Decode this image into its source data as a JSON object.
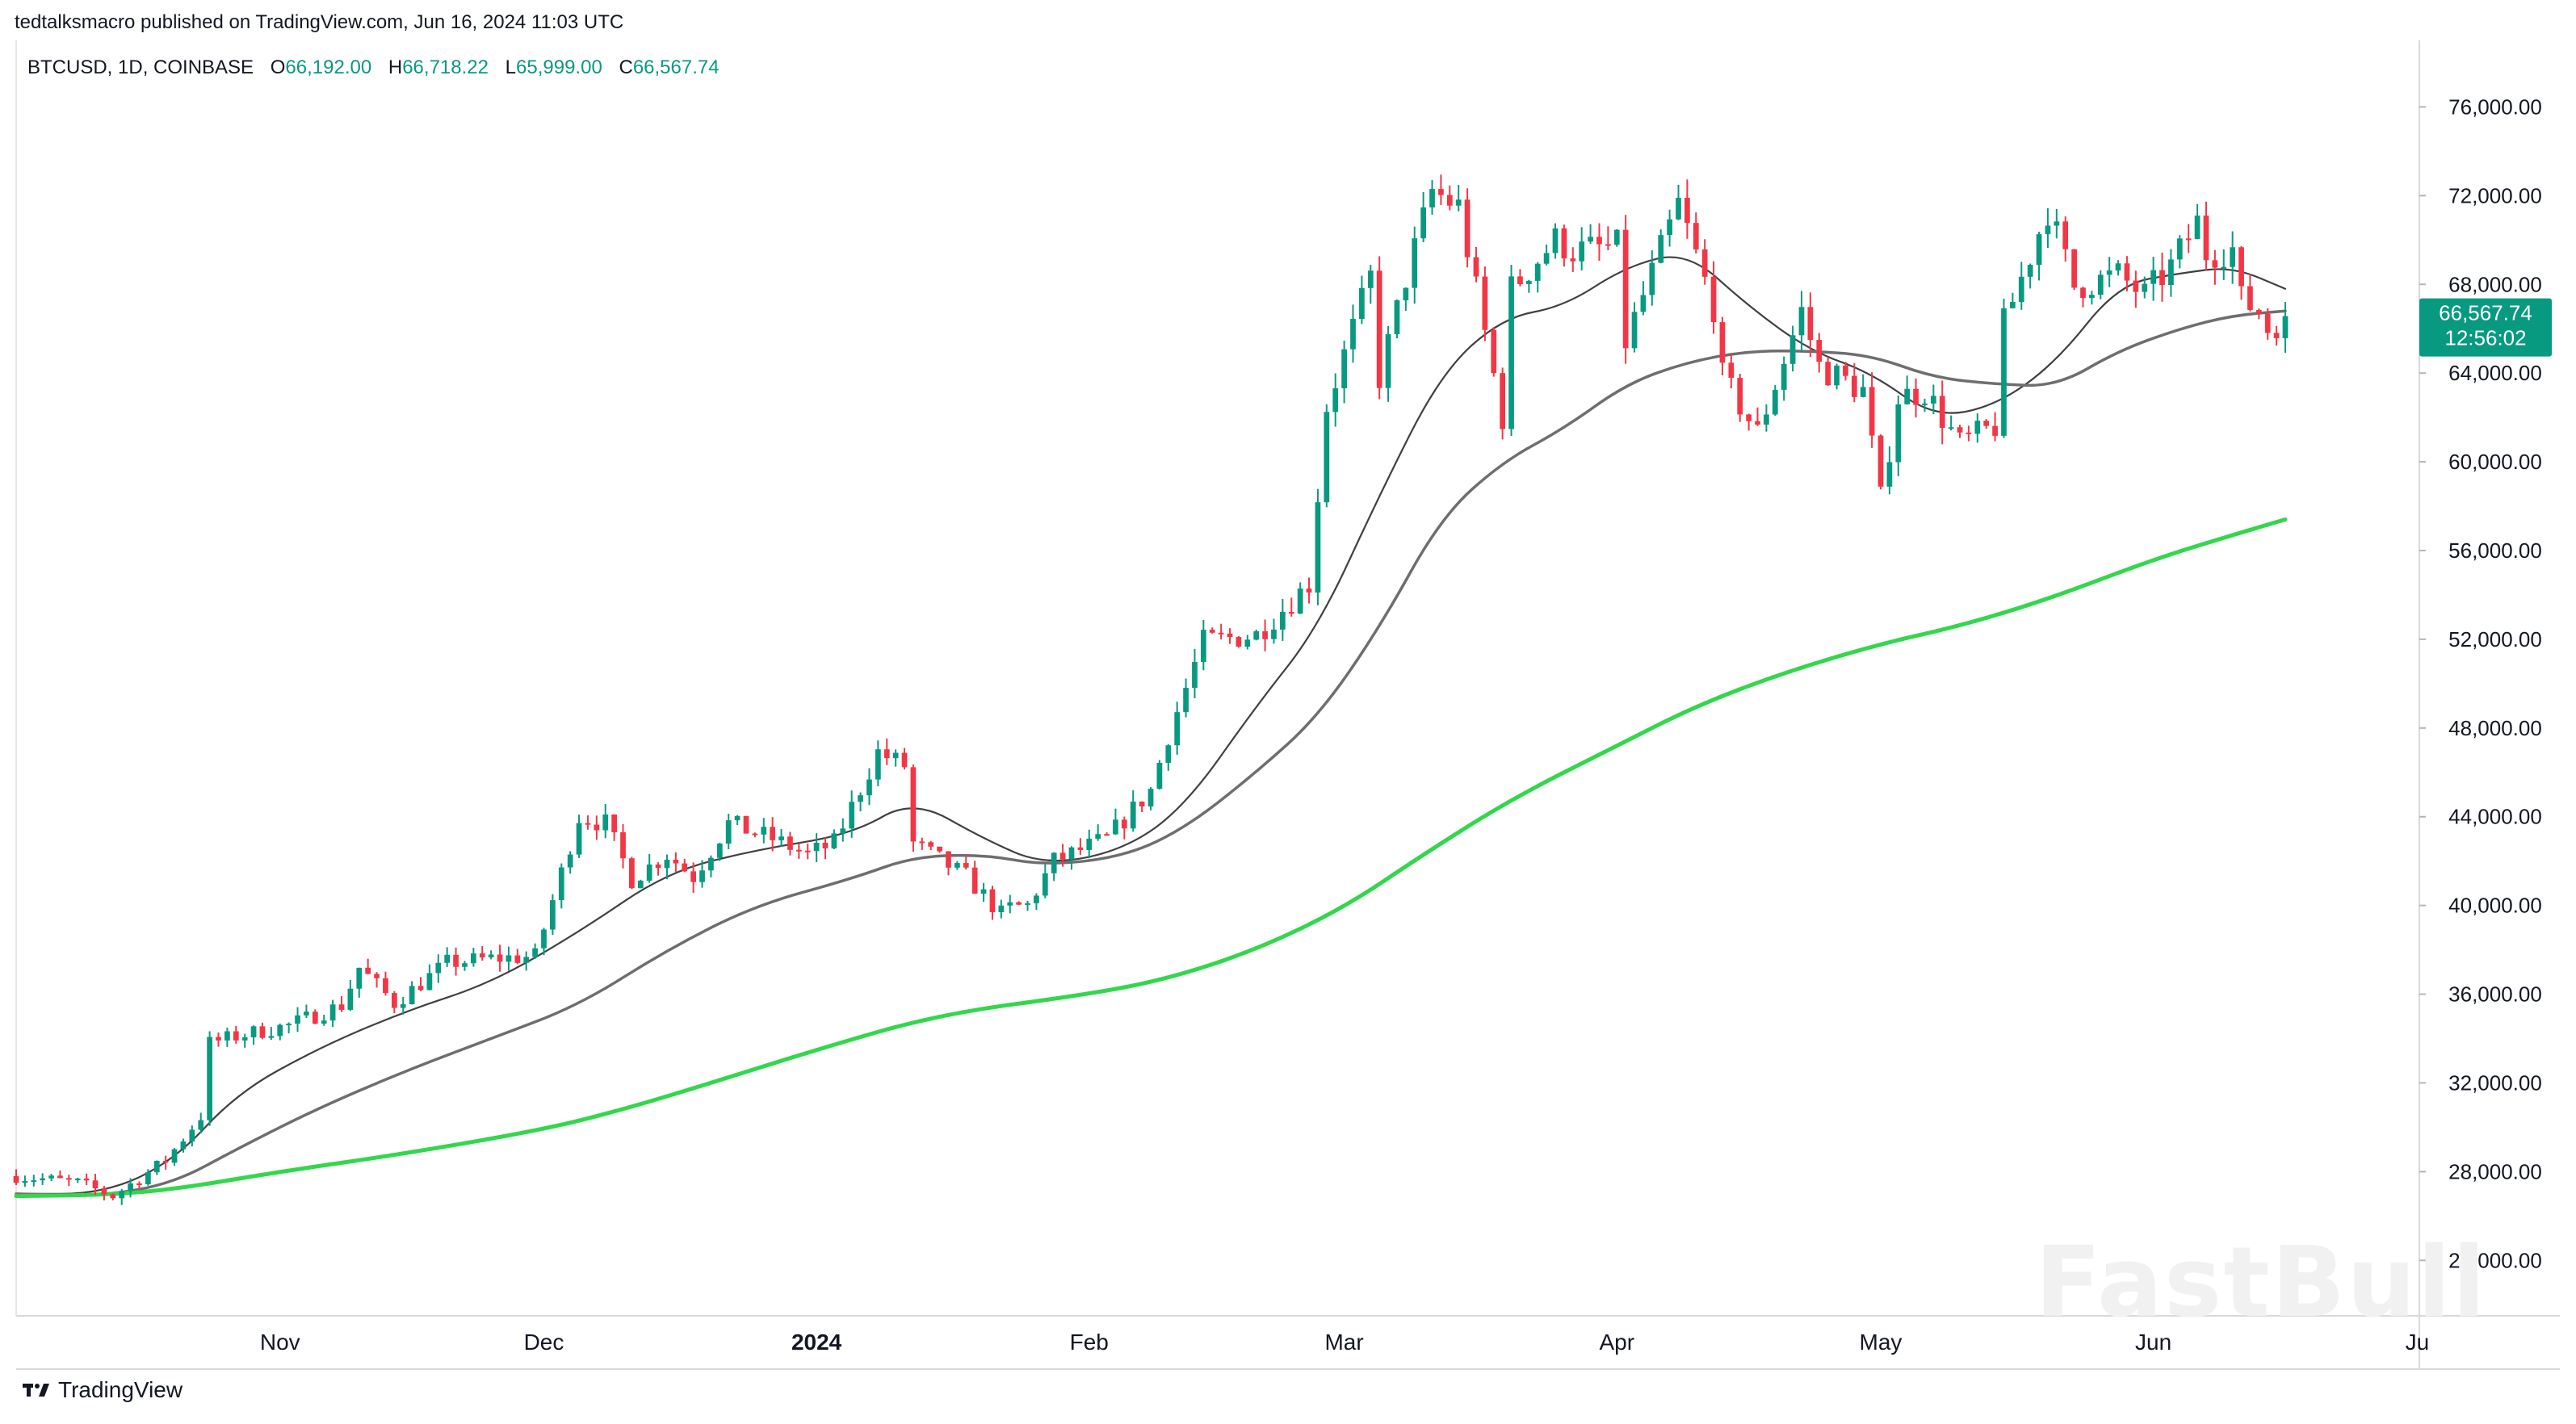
{
  "header": {
    "publisher": "tedtalksmacro published on TradingView.com, Jun 16, 2024 11:03 UTC",
    "symbol": "BTCUSD, 1D, COINBASE",
    "open_label": "O",
    "open": "66,192.00",
    "high_label": "H",
    "high": "66,718.22",
    "low_label": "L",
    "low": "65,999.00",
    "close_label": "C",
    "close": "66,567.74"
  },
  "price_tag": {
    "price": "66,567.74",
    "countdown": "12:56:02",
    "value": 66567.74
  },
  "footer": {
    "brand": "TradingView",
    "watermark": "FastBull"
  },
  "colors": {
    "up": "#089981",
    "down": "#f23645",
    "ma_fast": "#404040",
    "ma_slow": "#6e6e6e",
    "ma_long": "#32d74b",
    "tag": "#089981"
  },
  "chart_data": {
    "type": "candlestick",
    "y_axis_ticks": [
      "76,000.00",
      "72,000.00",
      "68,000.00",
      "64,000.00",
      "60,000.00",
      "56,000.00",
      "52,000.00",
      "48,000.00",
      "44,000.00",
      "40,000.00",
      "36,000.00",
      "32,000.00",
      "28,000.00",
      "24,000.00"
    ],
    "y_axis_values": [
      76000,
      72000,
      68000,
      64000,
      60000,
      56000,
      52000,
      48000,
      44000,
      40000,
      36000,
      32000,
      28000,
      24000
    ],
    "x_axis_labels": [
      {
        "label": "Nov",
        "date": "2023-11-01"
      },
      {
        "label": "Dec",
        "date": "2023-12-01"
      },
      {
        "label": "2024",
        "date": "2024-01-01",
        "bold": true
      },
      {
        "label": "Feb",
        "date": "2024-02-01"
      },
      {
        "label": "Mar",
        "date": "2024-03-01"
      },
      {
        "label": "Apr",
        "date": "2024-04-01"
      },
      {
        "label": "May",
        "date": "2024-05-01"
      },
      {
        "label": "Jun",
        "date": "2024-06-01"
      },
      {
        "label": "Ju",
        "date": "2024-07-01"
      }
    ],
    "start_date": "2023-10-02",
    "end_date": "2024-06-16",
    "price_range": [
      21500,
      79000
    ],
    "grid": false,
    "moving_averages": [
      {
        "key": "ma_fast",
        "width": 2.2,
        "points": [
          [
            "2023-10-02",
            27000
          ],
          [
            "2023-10-12",
            27000
          ],
          [
            "2023-10-20",
            28500
          ],
          [
            "2023-10-27",
            31500
          ],
          [
            "2023-11-05",
            33500
          ],
          [
            "2023-11-15",
            35200
          ],
          [
            "2023-11-25",
            36500
          ],
          [
            "2023-12-05",
            38800
          ],
          [
            "2023-12-15",
            41500
          ],
          [
            "2023-12-25",
            42500
          ],
          [
            "2024-01-05",
            43200
          ],
          [
            "2024-01-12",
            44800
          ],
          [
            "2024-01-20",
            43000
          ],
          [
            "2024-01-27",
            41800
          ],
          [
            "2024-02-05",
            42500
          ],
          [
            "2024-02-12",
            44500
          ],
          [
            "2024-02-20",
            49000
          ],
          [
            "2024-02-27",
            52500
          ],
          [
            "2024-03-05",
            58500
          ],
          [
            "2024-03-12",
            64000
          ],
          [
            "2024-03-19",
            66500
          ],
          [
            "2024-03-26",
            67000
          ],
          [
            "2024-04-02",
            68800
          ],
          [
            "2024-04-09",
            69500
          ],
          [
            "2024-04-16",
            67000
          ],
          [
            "2024-04-23",
            65000
          ],
          [
            "2024-04-30",
            64000
          ],
          [
            "2024-05-07",
            62000
          ],
          [
            "2024-05-14",
            62500
          ],
          [
            "2024-05-21",
            64500
          ],
          [
            "2024-05-28",
            68000
          ],
          [
            "2024-06-04",
            68500
          ],
          [
            "2024-06-10",
            68800
          ],
          [
            "2024-06-16",
            67800
          ]
        ]
      },
      {
        "key": "ma_slow",
        "width": 3.5,
        "points": [
          [
            "2023-10-02",
            27000
          ],
          [
            "2023-10-12",
            26900
          ],
          [
            "2023-10-20",
            27500
          ],
          [
            "2023-10-27",
            29000
          ],
          [
            "2023-11-05",
            30800
          ],
          [
            "2023-11-15",
            32500
          ],
          [
            "2023-11-25",
            34000
          ],
          [
            "2023-12-05",
            35500
          ],
          [
            "2023-12-15",
            38000
          ],
          [
            "2023-12-25",
            40000
          ],
          [
            "2024-01-05",
            41200
          ],
          [
            "2024-01-12",
            42200
          ],
          [
            "2024-01-20",
            42300
          ],
          [
            "2024-01-27",
            41800
          ],
          [
            "2024-02-05",
            42200
          ],
          [
            "2024-02-12",
            43500
          ],
          [
            "2024-02-20",
            46000
          ],
          [
            "2024-02-27",
            48500
          ],
          [
            "2024-03-05",
            52500
          ],
          [
            "2024-03-12",
            57500
          ],
          [
            "2024-03-19",
            60000
          ],
          [
            "2024-03-26",
            61500
          ],
          [
            "2024-04-02",
            63500
          ],
          [
            "2024-04-09",
            64500
          ],
          [
            "2024-04-16",
            65000
          ],
          [
            "2024-04-23",
            65000
          ],
          [
            "2024-04-30",
            64800
          ],
          [
            "2024-05-07",
            63800
          ],
          [
            "2024-05-14",
            63500
          ],
          [
            "2024-05-21",
            63400
          ],
          [
            "2024-05-28",
            65000
          ],
          [
            "2024-06-04",
            66000
          ],
          [
            "2024-06-10",
            66600
          ],
          [
            "2024-06-16",
            66800
          ]
        ]
      },
      {
        "key": "ma_long",
        "width": 5,
        "points": [
          [
            "2023-10-02",
            26900
          ],
          [
            "2023-10-12",
            26950
          ],
          [
            "2023-10-20",
            27200
          ],
          [
            "2023-11-01",
            28000
          ],
          [
            "2023-11-15",
            28800
          ],
          [
            "2023-12-01",
            29900
          ],
          [
            "2023-12-10",
            30800
          ],
          [
            "2023-12-20",
            32000
          ],
          [
            "2024-01-01",
            33500
          ],
          [
            "2024-01-15",
            35100
          ],
          [
            "2024-02-01",
            36000
          ],
          [
            "2024-02-10",
            36700
          ],
          [
            "2024-02-20",
            38000
          ],
          [
            "2024-03-01",
            39900
          ],
          [
            "2024-03-10",
            42300
          ],
          [
            "2024-03-20",
            44800
          ],
          [
            "2024-04-01",
            47200
          ],
          [
            "2024-04-10",
            49000
          ],
          [
            "2024-04-20",
            50500
          ],
          [
            "2024-05-01",
            51800
          ],
          [
            "2024-05-10",
            52600
          ],
          [
            "2024-05-20",
            53800
          ],
          [
            "2024-06-01",
            55600
          ],
          [
            "2024-06-10",
            56700
          ],
          [
            "2024-06-16",
            57400
          ]
        ]
      }
    ],
    "anchors": [
      [
        "2023-10-02",
        27800
      ],
      [
        "2023-10-09",
        27500
      ],
      [
        "2023-10-13",
        26900
      ],
      [
        "2023-10-19",
        28500
      ],
      [
        "2023-10-23",
        30500
      ],
      [
        "2023-10-24",
        33800
      ],
      [
        "2023-10-27",
        34100
      ],
      [
        "2023-11-02",
        34600
      ],
      [
        "2023-11-08",
        35500
      ],
      [
        "2023-11-10",
        37200
      ],
      [
        "2023-11-14",
        35600
      ],
      [
        "2023-11-20",
        37400
      ],
      [
        "2023-11-25",
        37600
      ],
      [
        "2023-11-30",
        37700
      ],
      [
        "2023-12-05",
        44000
      ],
      [
        "2023-12-08",
        43700
      ],
      [
        "2023-12-11",
        41200
      ],
      [
        "2023-12-15",
        42300
      ],
      [
        "2023-12-18",
        41300
      ],
      [
        "2023-12-22",
        43700
      ],
      [
        "2023-12-27",
        43000
      ],
      [
        "2023-12-31",
        42300
      ],
      [
        "2024-01-03",
        42800
      ],
      [
        "2024-01-08",
        46900
      ],
      [
        "2024-01-11",
        46300
      ],
      [
        "2024-01-12",
        42800
      ],
      [
        "2024-01-18",
        41300
      ],
      [
        "2024-01-22",
        39600
      ],
      [
        "2024-01-23",
        39900
      ],
      [
        "2024-01-25",
        40000
      ],
      [
        "2024-01-28",
        42000
      ],
      [
        "2024-02-03",
        43000
      ],
      [
        "2024-02-08",
        45200
      ],
      [
        "2024-02-10",
        47700
      ],
      [
        "2024-02-14",
        51900
      ],
      [
        "2024-02-20",
        52200
      ],
      [
        "2024-02-26",
        54500
      ],
      [
        "2024-02-28",
        62500
      ],
      [
        "2024-03-04",
        68300
      ],
      [
        "2024-03-05",
        63800
      ],
      [
        "2024-03-08",
        68300
      ],
      [
        "2024-03-11",
        72200
      ],
      [
        "2024-03-14",
        71500
      ],
      [
        "2024-03-19",
        62000
      ],
      [
        "2024-03-20",
        67800
      ],
      [
        "2024-03-25",
        70000
      ],
      [
        "2024-03-27",
        69500
      ],
      [
        "2024-04-01",
        69700
      ],
      [
        "2024-04-02",
        65400
      ],
      [
        "2024-04-08",
        71600
      ],
      [
        "2024-04-12",
        67000
      ],
      [
        "2024-04-13",
        63800
      ],
      [
        "2024-04-17",
        61300
      ],
      [
        "2024-04-22",
        66800
      ],
      [
        "2024-04-24",
        64300
      ],
      [
        "2024-04-29",
        63200
      ],
      [
        "2024-05-01",
        58300
      ],
      [
        "2024-05-03",
        62900
      ],
      [
        "2024-05-06",
        63200
      ],
      [
        "2024-05-10",
        60800
      ],
      [
        "2024-05-14",
        61600
      ],
      [
        "2024-05-15",
        66200
      ],
      [
        "2024-05-20",
        71400
      ],
      [
        "2024-05-23",
        67900
      ],
      [
        "2024-05-28",
        68400
      ],
      [
        "2024-05-31",
        67500
      ],
      [
        "2024-06-03",
        68800
      ],
      [
        "2024-06-06",
        70800
      ],
      [
        "2024-06-07",
        69400
      ],
      [
        "2024-06-10",
        69600
      ],
      [
        "2024-06-11",
        67300
      ],
      [
        "2024-06-13",
        66800
      ],
      [
        "2024-06-14",
        66000
      ],
      [
        "2024-06-16",
        66568
      ]
    ]
  }
}
